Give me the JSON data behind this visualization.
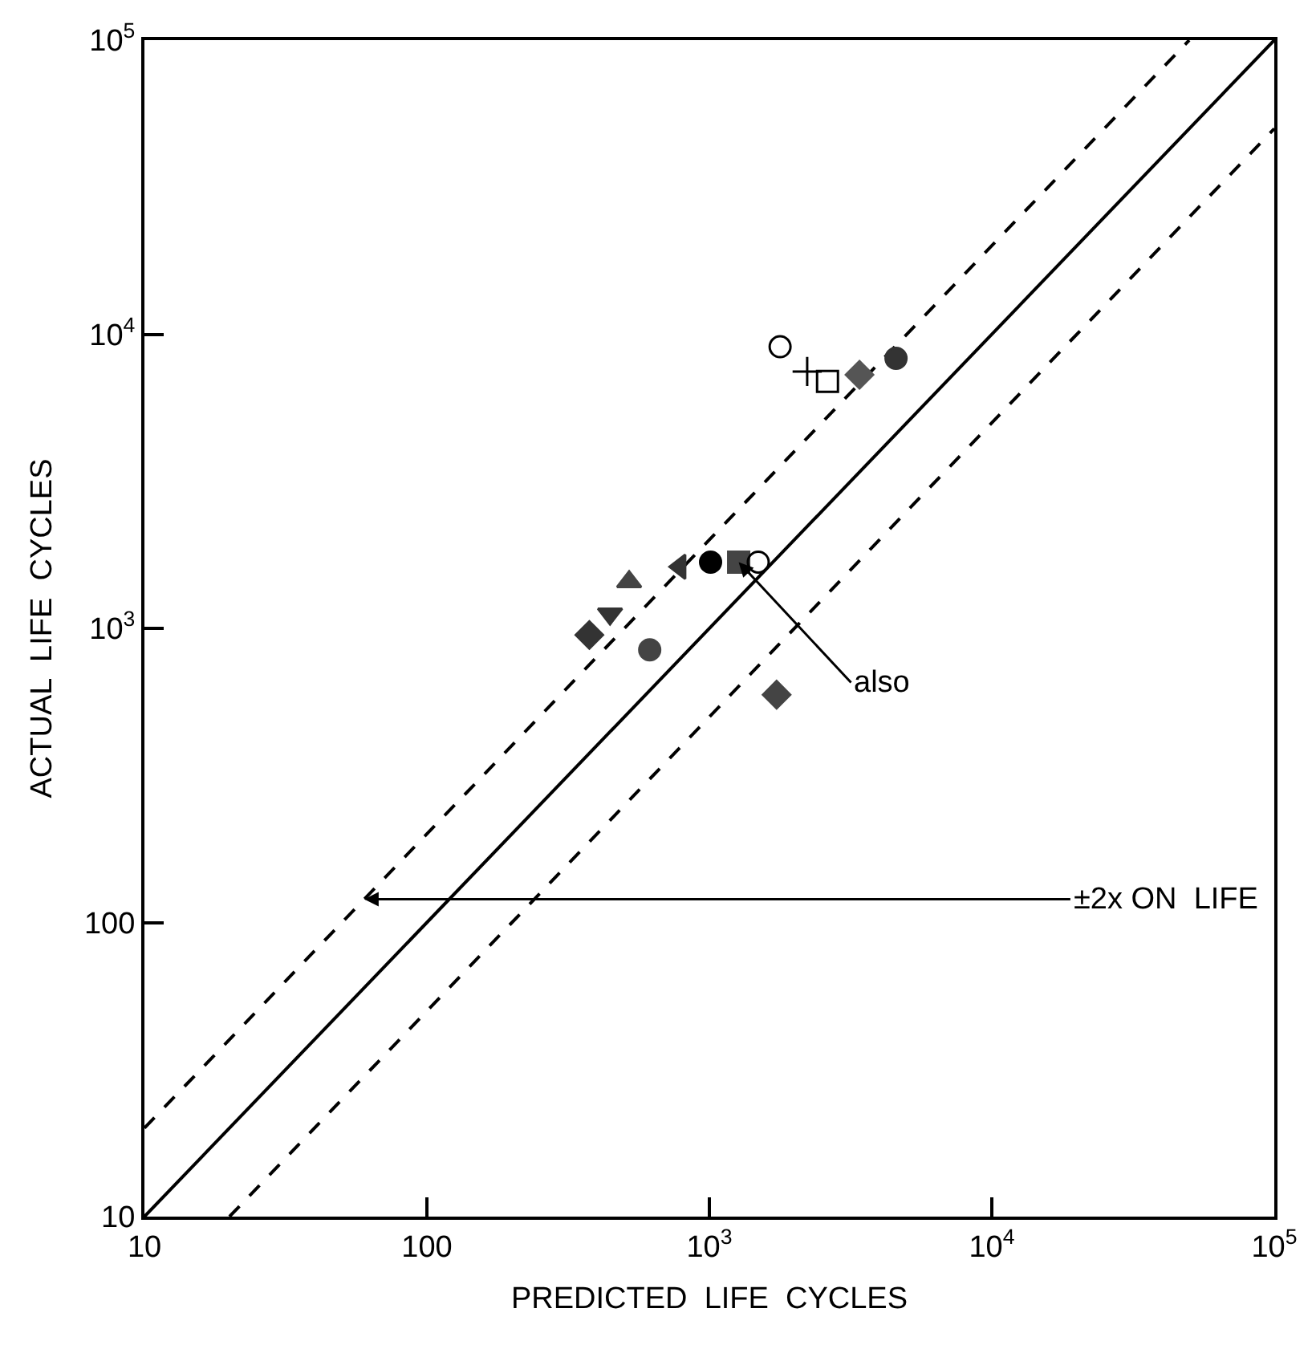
{
  "chart_data": {
    "type": "scatter",
    "xlabel": "PREDICTED  LIFE  CYCLES",
    "ylabel": "ACTUAL  LIFE  CYCLES",
    "log": "xy",
    "xlim": [
      10,
      100000
    ],
    "ylim": [
      10,
      100000
    ],
    "xticks": [
      10,
      100,
      {
        "value": 1000,
        "label": "10$^{3}$"
      },
      {
        "value": 10000,
        "label": "10$^{4}$"
      },
      {
        "value": 100000,
        "label": "10$^{5}$"
      }
    ],
    "yticks": [
      10,
      100,
      {
        "value": 1000,
        "label": "10$^{3}$"
      },
      {
        "value": 10000,
        "label": "10$^{4}$"
      },
      {
        "value": 100000,
        "label": "10$^{5}$"
      }
    ],
    "series": [
      {
        "type": "line",
        "color": "#000000",
        "line_style": "solid",
        "marker": "none",
        "x": [
          10,
          100000
        ],
        "values": [
          10,
          100000
        ]
      },
      {
        "type": "line",
        "color": "#000000",
        "line_style": "dashed",
        "marker": "none",
        "x": [
          10,
          50000
        ],
        "values": [
          20,
          100000
        ]
      },
      {
        "type": "line",
        "color": "#000000",
        "line_style": "dashed",
        "marker": "none",
        "x": [
          20,
          100000
        ],
        "values": [
          10,
          50000
        ]
      },
      {
        "color": "#000000",
        "marker": "circle-open",
        "x": [
          1780
        ],
        "values": [
          9070
        ]
      },
      {
        "color": "#000000",
        "marker": "cross-thin-open",
        "x": [
          2220
        ],
        "values": [
          7470
        ]
      },
      {
        "color": "#000000",
        "marker": "square-open",
        "x": [
          2620
        ],
        "values": [
          6910
        ]
      },
      {
        "color": "#555555",
        "marker": "diamond",
        "x": [
          3400
        ],
        "values": [
          7280
        ]
      },
      {
        "color": "#333333",
        "marker": "circle",
        "x": [
          4580
        ],
        "values": [
          8280
        ]
      },
      {
        "color": "#333333",
        "marker": "triangle-left",
        "x": [
          787
        ],
        "values": [
          1620
        ]
      },
      {
        "color": "#000000",
        "marker": "circle-dot",
        "x": [
          1010
        ],
        "values": [
          1680
        ]
      },
      {
        "color": "#444444",
        "marker": "square",
        "x": [
          1270
        ],
        "values": [
          1680
        ]
      },
      {
        "color": "#000000",
        "marker": "circle-open",
        "x": [
          1490
        ],
        "values": [
          1680
        ]
      },
      {
        "color": "#444444",
        "marker": "triangle-up",
        "x": [
          520
        ],
        "values": [
          1440
        ]
      },
      {
        "color": "#333333",
        "marker": "triangle-down",
        "x": [
          445
        ],
        "values": [
          1120
        ]
      },
      {
        "color": "#333333",
        "marker": "diamond",
        "x": [
          376
        ],
        "values": [
          950
        ]
      },
      {
        "color": "#444444",
        "marker": "circle",
        "x": [
          615
        ],
        "values": [
          845
        ]
      },
      {
        "color": "#444444",
        "marker": "diamond",
        "x": [
          1730
        ],
        "values": [
          595
        ]
      }
    ],
    "annotations": [
      {
        "text": "also",
        "x": 1270,
        "y": 1680
      },
      {
        "text": "±2x ON  LIFE",
        "x": 60,
        "y": 120
      }
    ]
  }
}
